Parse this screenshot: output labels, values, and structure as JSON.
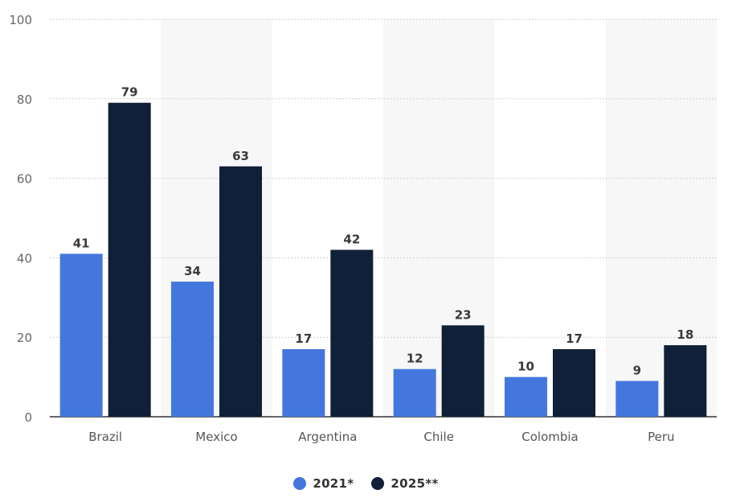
{
  "chart_data": {
    "type": "bar",
    "categories": [
      "Brazil",
      "Mexico",
      "Argentina",
      "Chile",
      "Colombia",
      "Peru"
    ],
    "series": [
      {
        "name": "2021*",
        "values": [
          41,
          34,
          17,
          12,
          10,
          9
        ],
        "color": "#4477dd"
      },
      {
        "name": "2025**",
        "values": [
          79,
          63,
          42,
          23,
          17,
          18
        ],
        "color": "#0f2038"
      }
    ],
    "ylim": [
      0,
      100
    ],
    "yticks": [
      0,
      20,
      40,
      60,
      80,
      100
    ],
    "grid": true,
    "legend": "bottom-center",
    "data_labels": true
  }
}
